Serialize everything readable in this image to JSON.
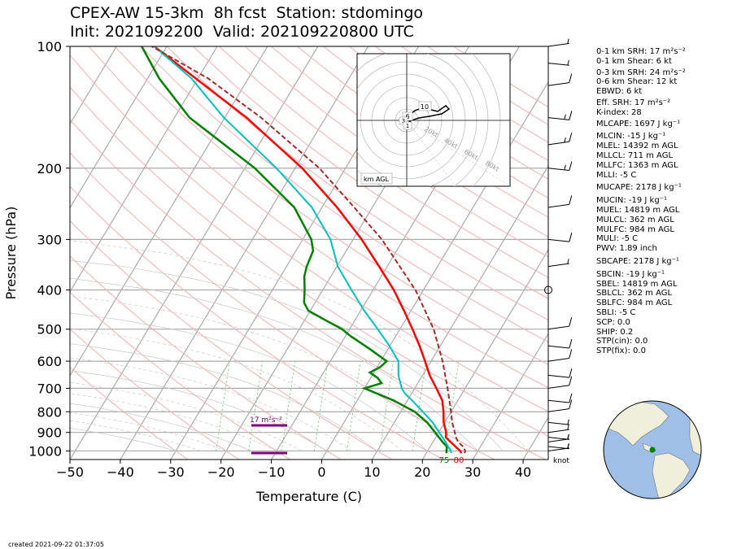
{
  "title_line1": "CPEX-AW 15-3km  8h fcst  Station: stdomingo",
  "title_line2": "Init: 2021092200  Valid: 202109220800 UTC",
  "created": "created 2021-09-22 01:37:05",
  "knot_label": "knot",
  "inset": {
    "label": "km AGL",
    "ring_labels": [
      "20kt",
      "40kt",
      "60kt",
      "80kt"
    ],
    "height_labels": [
      "10",
      "6",
      "3",
      "1"
    ]
  },
  "srh_annotation": "17 m²s⁻²",
  "surface_labels": {
    "dewpoint": "75",
    "temperature": "80"
  },
  "indices": [
    "0-1 km SRH: 17 m²s⁻²",
    "0-1 km Shear: 6 kt",
    "0-3 km SRH: 24 m²s⁻²",
    "0-6 km Shear: 12 kt",
    "EBWD: 6 kt",
    "Eff. SRH: 17 m²s⁻²",
    "K-index: 28",
    "MLCAPE: 1697 J kg⁻¹",
    "MLCIN: -15 J kg⁻¹",
    "MLEL: 14392 m AGL",
    "MLLCL: 711 m AGL",
    "MLLFC: 1363 m AGL",
    "MLLI: -5 C",
    "MUCAPE: 2178 J kg⁻¹",
    "MUCIN: -19 J kg⁻¹",
    "MUEL: 14819 m AGL",
    "MULCL: 362 m AGL",
    "MULFC: 984 m AGL",
    "MULI: -5 C",
    "PWV: 1.89 inch",
    "SBCAPE: 2178 J kg⁻¹",
    "SBCIN: -19 J kg⁻¹",
    "SBEL: 14819 m AGL",
    "SBLCL: 362 m AGL",
    "SBLFC: 984 m AGL",
    "SBLI: -5 C",
    "SCP: 0.0",
    "SHIP: 0.2",
    "STP(cin): 0.0",
    "STP(fix): 0.0"
  ],
  "colors": {
    "temperature": "#ff0000",
    "dewpoint": "#008000",
    "wetbulb": "#00bfbf",
    "parcel": "#a52a2a",
    "srh": "#800080",
    "globe_ocean": "#9fbfe6",
    "globe_land": "#f0efdc",
    "station": "#008000"
  },
  "chart_data": {
    "type": "skew-t",
    "xlabel": "Temperature (C)",
    "ylabel": "Pressure (hPa)",
    "xlim": [
      -50,
      45
    ],
    "ylim": [
      1050,
      100
    ],
    "xticks": [
      -50,
      -40,
      -30,
      -20,
      -10,
      0,
      10,
      20,
      30,
      40
    ],
    "yticks": [
      100,
      200,
      300,
      400,
      500,
      600,
      700,
      800,
      900,
      1000
    ],
    "series": [
      {
        "key": "temperature",
        "points": [
          [
            1013,
            27
          ],
          [
            1000,
            26.5
          ],
          [
            975,
            25
          ],
          [
            950,
            23.5
          ],
          [
            925,
            22
          ],
          [
            900,
            21.5
          ],
          [
            850,
            19.8
          ],
          [
            800,
            18.5
          ],
          [
            750,
            16.9
          ],
          [
            700,
            14.3
          ],
          [
            650,
            11.4
          ],
          [
            600,
            8.8
          ],
          [
            550,
            5.9
          ],
          [
            500,
            2.5
          ],
          [
            450,
            -1.4
          ],
          [
            400,
            -5.9
          ],
          [
            350,
            -11.6
          ],
          [
            300,
            -18.3
          ],
          [
            250,
            -27
          ],
          [
            200,
            -38.6
          ],
          [
            150,
            -55.7
          ],
          [
            100,
            -82.5
          ]
        ]
      },
      {
        "key": "dewpoint",
        "points": [
          [
            1013,
            24
          ],
          [
            1000,
            23.8
          ],
          [
            975,
            23.3
          ],
          [
            950,
            21.9
          ],
          [
            900,
            19.3
          ],
          [
            850,
            16.5
          ],
          [
            800,
            12.8
          ],
          [
            750,
            7.2
          ],
          [
            700,
            0
          ],
          [
            680,
            2.8
          ],
          [
            660,
            1.4
          ],
          [
            640,
            -0.8
          ],
          [
            620,
            0.6
          ],
          [
            600,
            1.2
          ],
          [
            560,
            -3.6
          ],
          [
            520,
            -9
          ],
          [
            500,
            -11.5
          ],
          [
            480,
            -15
          ],
          [
            450,
            -20.4
          ],
          [
            430,
            -22.2
          ],
          [
            400,
            -23.6
          ],
          [
            370,
            -25.3
          ],
          [
            350,
            -26
          ],
          [
            320,
            -26.6
          ],
          [
            300,
            -28.3
          ],
          [
            250,
            -35.5
          ],
          [
            200,
            -48
          ],
          [
            150,
            -67
          ],
          [
            120,
            -77.7
          ],
          [
            100,
            -85
          ]
        ]
      },
      {
        "key": "wetbulb",
        "points": [
          [
            1013,
            25
          ],
          [
            1000,
            24.6
          ],
          [
            950,
            22.5
          ],
          [
            900,
            20.1
          ],
          [
            850,
            17.6
          ],
          [
            800,
            14.4
          ],
          [
            750,
            10.9
          ],
          [
            720,
            8.6
          ],
          [
            700,
            7.4
          ],
          [
            650,
            5.2
          ],
          [
            600,
            3.5
          ],
          [
            550,
            -0.1
          ],
          [
            500,
            -4.4
          ],
          [
            450,
            -9.3
          ],
          [
            400,
            -14.3
          ],
          [
            350,
            -19.8
          ],
          [
            300,
            -24.5
          ],
          [
            250,
            -32
          ],
          [
            200,
            -43.7
          ],
          [
            150,
            -60.2
          ],
          [
            120,
            -71.3
          ],
          [
            100,
            -82.5
          ]
        ]
      },
      {
        "key": "parcel",
        "points": [
          [
            1013,
            27.6
          ],
          [
            1000,
            27.5
          ],
          [
            975,
            26.5
          ],
          [
            950,
            25
          ],
          [
            925,
            24
          ],
          [
            900,
            23.2
          ],
          [
            850,
            21.5
          ],
          [
            800,
            20
          ],
          [
            700,
            16.5
          ],
          [
            600,
            12.3
          ],
          [
            500,
            6.7
          ],
          [
            400,
            -1.6
          ],
          [
            300,
            -14.3
          ],
          [
            250,
            -23.6
          ],
          [
            200,
            -35.2
          ],
          [
            150,
            -52.8
          ],
          [
            120,
            -68
          ],
          [
            100,
            -83
          ]
        ]
      }
    ],
    "wind_barbs": [
      {
        "p": 1000,
        "speed_kt": 5
      },
      {
        "p": 975,
        "speed_kt": 5
      },
      {
        "p": 950,
        "speed_kt": 5
      },
      {
        "p": 925,
        "speed_kt": 5
      },
      {
        "p": 900,
        "speed_kt": 5
      },
      {
        "p": 850,
        "speed_kt": 5
      },
      {
        "p": 800,
        "speed_kt": 10
      },
      {
        "p": 750,
        "speed_kt": 10
      },
      {
        "p": 700,
        "speed_kt": 10
      },
      {
        "p": 650,
        "speed_kt": 10
      },
      {
        "p": 600,
        "speed_kt": 10
      },
      {
        "p": 550,
        "speed_kt": 10
      },
      {
        "p": 500,
        "speed_kt": 10
      },
      {
        "p": 400,
        "speed_kt": 0
      },
      {
        "p": 350,
        "speed_kt": 5
      },
      {
        "p": 300,
        "speed_kt": 10
      },
      {
        "p": 250,
        "speed_kt": 10
      },
      {
        "p": 200,
        "speed_kt": 15
      },
      {
        "p": 175,
        "speed_kt": 15
      },
      {
        "p": 150,
        "speed_kt": 15
      },
      {
        "p": 125,
        "speed_kt": 10
      },
      {
        "p": 110,
        "speed_kt": 5
      },
      {
        "p": 100,
        "speed_kt": 5
      }
    ]
  }
}
